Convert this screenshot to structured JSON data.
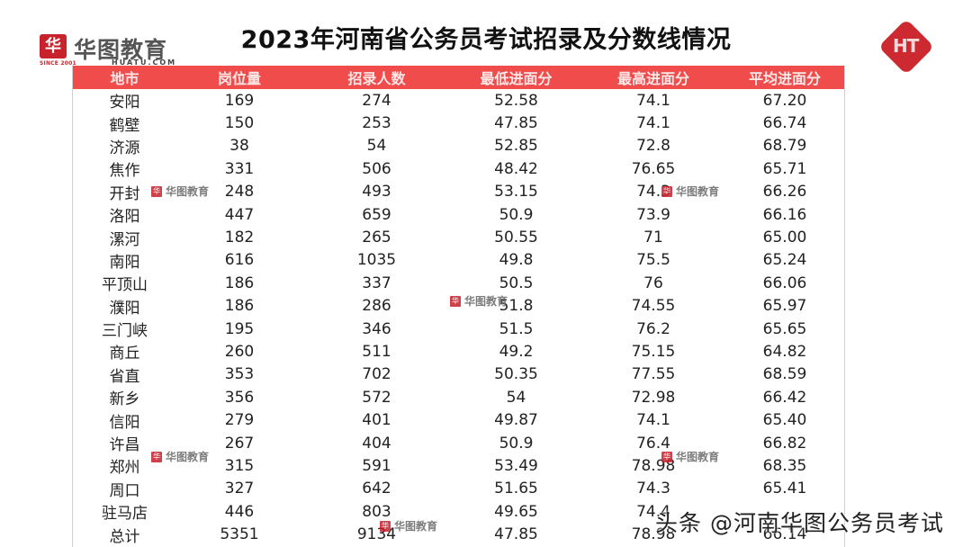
{
  "header": {
    "title": "2023年河南省公务员考试招录及分数线情况",
    "logo_left": {
      "mark": "华",
      "cn": "华图教育",
      "en": "HUATU.COM",
      "since": "SINCE 2001"
    },
    "logo_right": {
      "text": "HT"
    }
  },
  "table": {
    "columns": [
      "地市",
      "岗位量",
      "招录人数",
      "最低进面分",
      "最高进面分",
      "平均进面分"
    ],
    "rows": [
      [
        "安阳",
        "169",
        "274",
        "52.58",
        "74.1",
        "67.20"
      ],
      [
        "鹤壁",
        "150",
        "253",
        "47.85",
        "74.1",
        "66.74"
      ],
      [
        "济源",
        "38",
        "54",
        "52.85",
        "72.8",
        "68.79"
      ],
      [
        "焦作",
        "331",
        "506",
        "48.42",
        "76.65",
        "65.71"
      ],
      [
        "开封",
        "248",
        "493",
        "53.15",
        "74.3",
        "66.26"
      ],
      [
        "洛阳",
        "447",
        "659",
        "50.9",
        "73.9",
        "66.16"
      ],
      [
        "漯河",
        "182",
        "265",
        "50.55",
        "71",
        "65.00"
      ],
      [
        "南阳",
        "616",
        "1035",
        "49.8",
        "75.5",
        "65.24"
      ],
      [
        "平顶山",
        "186",
        "337",
        "50.5",
        "76",
        "66.06"
      ],
      [
        "濮阳",
        "186",
        "286",
        "51.8",
        "74.55",
        "65.97"
      ],
      [
        "三门峡",
        "195",
        "346",
        "51.5",
        "76.2",
        "65.65"
      ],
      [
        "商丘",
        "260",
        "511",
        "49.2",
        "75.15",
        "64.82"
      ],
      [
        "省直",
        "353",
        "702",
        "50.35",
        "77.55",
        "68.59"
      ],
      [
        "新乡",
        "356",
        "572",
        "54",
        "72.98",
        "66.42"
      ],
      [
        "信阳",
        "279",
        "401",
        "49.87",
        "74.1",
        "65.40"
      ],
      [
        "许昌",
        "267",
        "404",
        "50.9",
        "76.4",
        "66.82"
      ],
      [
        "郑州",
        "315",
        "591",
        "53.49",
        "78.98",
        "68.35"
      ],
      [
        "周口",
        "327",
        "642",
        "51.65",
        "74.3",
        "65.41"
      ],
      [
        "驻马店",
        "446",
        "803",
        "49.65",
        "74.4",
        ""
      ],
      [
        "总计",
        "5351",
        "9134",
        "47.85",
        "78.98",
        "66.14"
      ]
    ]
  },
  "watermarks": {
    "brand": "华图教育",
    "footer": "头条 @河南华图公务员考试"
  },
  "colors": {
    "header_bg": "#f14c4c",
    "brand_red": "#c8222c"
  }
}
